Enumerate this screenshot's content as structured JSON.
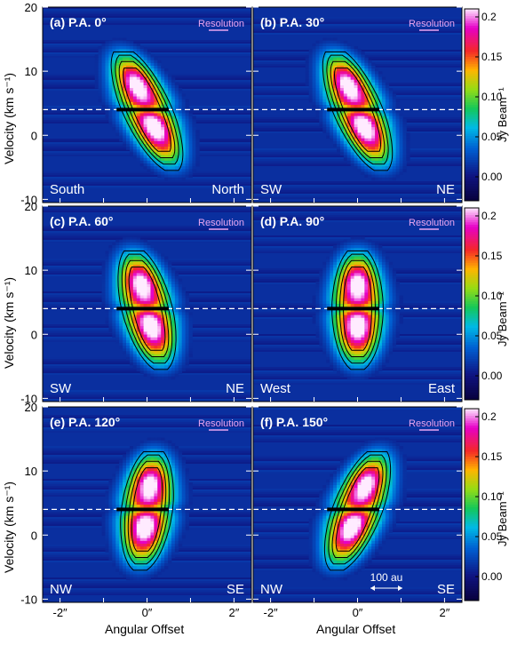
{
  "chart_data": {
    "type": "heatmap",
    "description_type": "position-velocity diagrams",
    "ylabel": "Velocity (km s⁻¹)",
    "xlabel": "Angular Offset",
    "y_ticks": [
      "20",
      "10",
      "0",
      "-10"
    ],
    "ylim": [
      -10.5,
      20
    ],
    "x_ticks": [
      "-2″",
      "0″",
      "2″"
    ],
    "xlim": [
      -2.4,
      2.4
    ],
    "resolution_label": "Resolution",
    "systemic_velocity": 4,
    "colorbar": {
      "label": "Jy Beam⁻¹",
      "ticks": [
        "0.2",
        "0.15",
        "0.10",
        "0.05",
        "0.00"
      ],
      "range": [
        -0.03,
        0.21
      ]
    },
    "scale_bar_label": "100 au",
    "panels": [
      {
        "id": "a",
        "title": "(a) P.A. 0°",
        "left_label": "South",
        "right_label": "North",
        "tilt": 0.18
      },
      {
        "id": "b",
        "title": "(b) P.A. 30°",
        "left_label": "SW",
        "right_label": "NE",
        "tilt": 0.17
      },
      {
        "id": "c",
        "title": "(c) P.A. 60°",
        "left_label": "SW",
        "right_label": "NE",
        "tilt": 0.1
      },
      {
        "id": "d",
        "title": "(d) P.A. 90°",
        "left_label": "West",
        "right_label": "East",
        "tilt": 0.0
      },
      {
        "id": "e",
        "title": "(e) P.A. 120°",
        "left_label": "NW",
        "right_label": "SE",
        "tilt": -0.05
      },
      {
        "id": "f",
        "title": "(f) P.A. 150°",
        "left_label": "NW",
        "right_label": "SE",
        "tilt": -0.15
      }
    ]
  }
}
